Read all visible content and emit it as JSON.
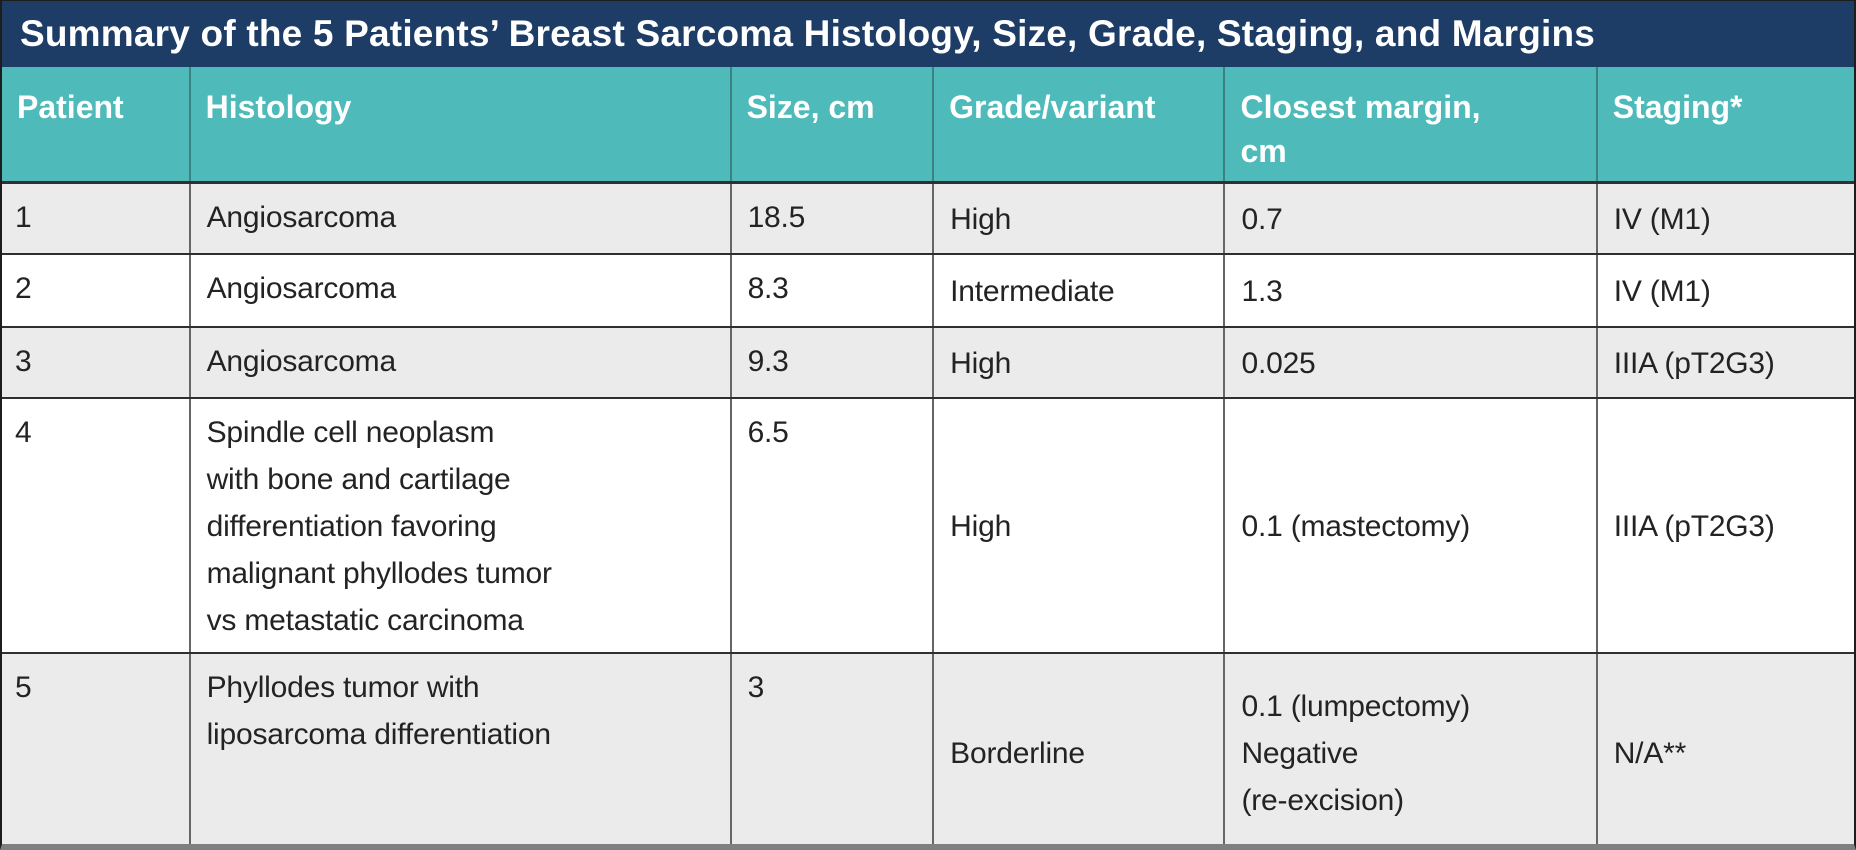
{
  "table": {
    "title": "Summary of the 5 Patients’ Breast Sarcoma Histology, Size, Grade, Staging, and Margins",
    "columns": {
      "patient": "Patient",
      "histology": "Histology",
      "size": "Size, cm",
      "grade": "Grade/variant",
      "margin": "Closest margin,\ncm",
      "staging": "Staging*"
    },
    "rows": [
      {
        "patient": "1",
        "histology": [
          "Angiosarcoma"
        ],
        "size": "18.5",
        "grade": "High",
        "margin": [
          "0.7"
        ],
        "staging": "IV (M1)"
      },
      {
        "patient": "2",
        "histology": [
          "Angiosarcoma"
        ],
        "size": "8.3",
        "grade": "Intermediate",
        "margin": [
          "1.3"
        ],
        "staging": "IV (M1)"
      },
      {
        "patient": "3",
        "histology": [
          "Angiosarcoma"
        ],
        "size": "9.3",
        "grade": "High",
        "margin": [
          "0.025"
        ],
        "staging": "IIIA (pT2G3)"
      },
      {
        "patient": "4",
        "histology": [
          "Spindle cell neoplasm",
          "with bone and cartilage",
          "differentiation favoring",
          "malignant phyllodes tumor",
          "vs metastatic carcinoma"
        ],
        "size": "6.5",
        "grade": "High",
        "margin": [
          "0.1 (mastectomy)"
        ],
        "staging": "IIIA (pT2G3)"
      },
      {
        "patient": "5",
        "histology": [
          "Phyllodes tumor with",
          "liposarcoma differentiation"
        ],
        "size": "3",
        "grade": "Borderline",
        "margin": [
          "0.1 (lumpectomy)",
          "Negative",
          "(re-excision)"
        ],
        "staging": "N/A**"
      }
    ],
    "colors": {
      "title_bg": "#1e3d66",
      "header_bg": "#4fbaba",
      "row_alt_bg": "#ebebeb",
      "row_bg": "#ffffff",
      "text": "#232323",
      "header_text": "#ffffff",
      "bottom_strip": "#7f7f7f"
    }
  }
}
